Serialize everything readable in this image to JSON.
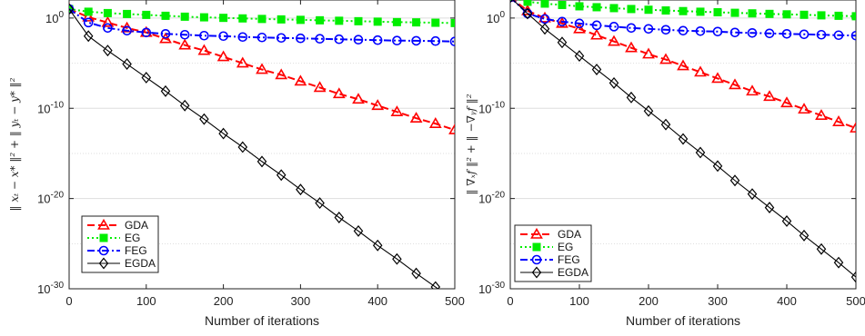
{
  "chart_data": [
    {
      "type": "line",
      "xlabel": "Number of iterations",
      "ylabel": "‖ xₜ − x* ‖² + ‖ yₜ − y* ‖²",
      "yscale": "log",
      "xlim": [
        0,
        500
      ],
      "ylim_exponent": [
        -30,
        2
      ],
      "xticks": [
        "0",
        "100",
        "200",
        "300",
        "400",
        "500"
      ],
      "yticks": [
        {
          "base": "10",
          "exp": "0"
        },
        {
          "base": "10",
          "exp": "-10"
        },
        {
          "base": "10",
          "exp": "-20"
        },
        {
          "base": "10",
          "exp": "-30"
        }
      ],
      "grid": "horizontal",
      "legend_position": "bottom-left",
      "series": [
        {
          "name": "GDA",
          "color": "#ff0000",
          "style": "dashed",
          "marker": "triangle",
          "x": [
            0,
            25,
            50,
            75,
            100,
            125,
            150,
            175,
            200,
            225,
            250,
            275,
            300,
            325,
            350,
            375,
            400,
            425,
            450,
            475,
            500
          ],
          "log10_y": [
            1.0,
            0.1,
            -0.5,
            -1.1,
            -1.6,
            -2.3,
            -3.0,
            -3.6,
            -4.3,
            -5.0,
            -5.7,
            -6.3,
            -7.0,
            -7.7,
            -8.4,
            -9.0,
            -9.7,
            -10.4,
            -11.1,
            -11.7,
            -12.4
          ]
        },
        {
          "name": "EG",
          "color": "#00ee00",
          "style": "dotted",
          "marker": "square",
          "x": [
            0,
            25,
            50,
            75,
            100,
            125,
            150,
            175,
            200,
            225,
            250,
            275,
            300,
            325,
            350,
            375,
            400,
            425,
            450,
            475,
            500
          ],
          "log10_y": [
            1.0,
            0.7,
            0.55,
            0.45,
            0.35,
            0.25,
            0.15,
            0.08,
            0.02,
            -0.04,
            -0.1,
            -0.15,
            -0.2,
            -0.25,
            -0.3,
            -0.35,
            -0.4,
            -0.45,
            -0.48,
            -0.52,
            -0.55
          ]
        },
        {
          "name": "FEG",
          "color": "#0000ff",
          "style": "dashdot",
          "marker": "circle",
          "x": [
            0,
            25,
            50,
            75,
            100,
            125,
            150,
            175,
            200,
            225,
            250,
            275,
            300,
            325,
            350,
            375,
            400,
            425,
            450,
            475,
            500
          ],
          "log10_y": [
            1.0,
            -0.5,
            -1.1,
            -1.4,
            -1.6,
            -1.75,
            -1.85,
            -1.95,
            -2.0,
            -2.1,
            -2.15,
            -2.2,
            -2.25,
            -2.3,
            -2.35,
            -2.4,
            -2.45,
            -2.5,
            -2.52,
            -2.55,
            -2.6
          ]
        },
        {
          "name": "EGDA",
          "color": "#000000",
          "style": "solid",
          "marker": "diamond",
          "x": [
            0,
            25,
            50,
            75,
            100,
            125,
            150,
            175,
            200,
            225,
            250,
            275,
            300,
            325,
            350,
            375,
            400,
            425,
            450,
            475,
            500
          ],
          "log10_y": [
            1.0,
            -2.0,
            -3.6,
            -5.1,
            -6.6,
            -8.1,
            -9.7,
            -11.2,
            -12.8,
            -14.3,
            -15.9,
            -17.4,
            -19.0,
            -20.5,
            -22.1,
            -23.6,
            -25.2,
            -26.7,
            -28.3,
            -29.8,
            -31.4
          ]
        }
      ]
    },
    {
      "type": "line",
      "xlabel": "Number of iterations",
      "ylabel": "‖ ∇ₓf ‖² + ‖ −∇ᵧf ‖²",
      "yscale": "log",
      "xlim": [
        0,
        500
      ],
      "ylim_exponent": [
        -30,
        2
      ],
      "xticks": [
        "0",
        "100",
        "200",
        "300",
        "400",
        "500"
      ],
      "yticks": [
        {
          "base": "10",
          "exp": "0"
        },
        {
          "base": "10",
          "exp": "-10"
        },
        {
          "base": "10",
          "exp": "-20"
        },
        {
          "base": "10",
          "exp": "-30"
        }
      ],
      "grid": "horizontal",
      "legend_position": "bottom-left",
      "series": [
        {
          "name": "GDA",
          "color": "#ff0000",
          "style": "dashed",
          "marker": "triangle",
          "x": [
            0,
            25,
            50,
            75,
            100,
            125,
            150,
            175,
            200,
            225,
            250,
            275,
            300,
            325,
            350,
            375,
            400,
            425,
            450,
            475,
            500
          ],
          "log10_y": [
            2.3,
            0.8,
            0.0,
            -0.6,
            -1.2,
            -1.9,
            -2.6,
            -3.3,
            -4.0,
            -4.6,
            -5.3,
            -6.0,
            -6.7,
            -7.4,
            -8.1,
            -8.7,
            -9.4,
            -10.1,
            -10.8,
            -11.5,
            -12.2
          ]
        },
        {
          "name": "EG",
          "color": "#00ee00",
          "style": "dotted",
          "marker": "square",
          "x": [
            0,
            25,
            50,
            75,
            100,
            125,
            150,
            175,
            200,
            225,
            250,
            275,
            300,
            325,
            350,
            375,
            400,
            425,
            450,
            475,
            500
          ],
          "log10_y": [
            2.3,
            1.8,
            1.6,
            1.45,
            1.3,
            1.2,
            1.1,
            1.0,
            0.92,
            0.84,
            0.77,
            0.7,
            0.64,
            0.58,
            0.52,
            0.46,
            0.41,
            0.36,
            0.3,
            0.25,
            0.2
          ]
        },
        {
          "name": "FEG",
          "color": "#0000ff",
          "style": "dashdot",
          "marker": "circle",
          "x": [
            0,
            25,
            50,
            75,
            100,
            125,
            150,
            175,
            200,
            225,
            250,
            275,
            300,
            325,
            350,
            375,
            400,
            425,
            450,
            475,
            500
          ],
          "log10_y": [
            2.3,
            0.5,
            -0.1,
            -0.4,
            -0.6,
            -0.8,
            -0.95,
            -1.1,
            -1.2,
            -1.3,
            -1.4,
            -1.45,
            -1.5,
            -1.6,
            -1.65,
            -1.7,
            -1.75,
            -1.8,
            -1.85,
            -1.9,
            -1.95
          ]
        },
        {
          "name": "EGDA",
          "color": "#000000",
          "style": "solid",
          "marker": "diamond",
          "x": [
            0,
            25,
            50,
            75,
            100,
            125,
            150,
            175,
            200,
            225,
            250,
            275,
            300,
            325,
            350,
            375,
            400,
            425,
            450,
            475,
            500
          ],
          "log10_y": [
            2.3,
            0.5,
            -1.2,
            -2.7,
            -4.2,
            -5.7,
            -7.2,
            -8.8,
            -10.3,
            -11.8,
            -13.4,
            -14.9,
            -16.4,
            -18.0,
            -19.5,
            -21.0,
            -22.5,
            -24.1,
            -25.6,
            -27.1,
            -28.7
          ]
        }
      ]
    }
  ]
}
